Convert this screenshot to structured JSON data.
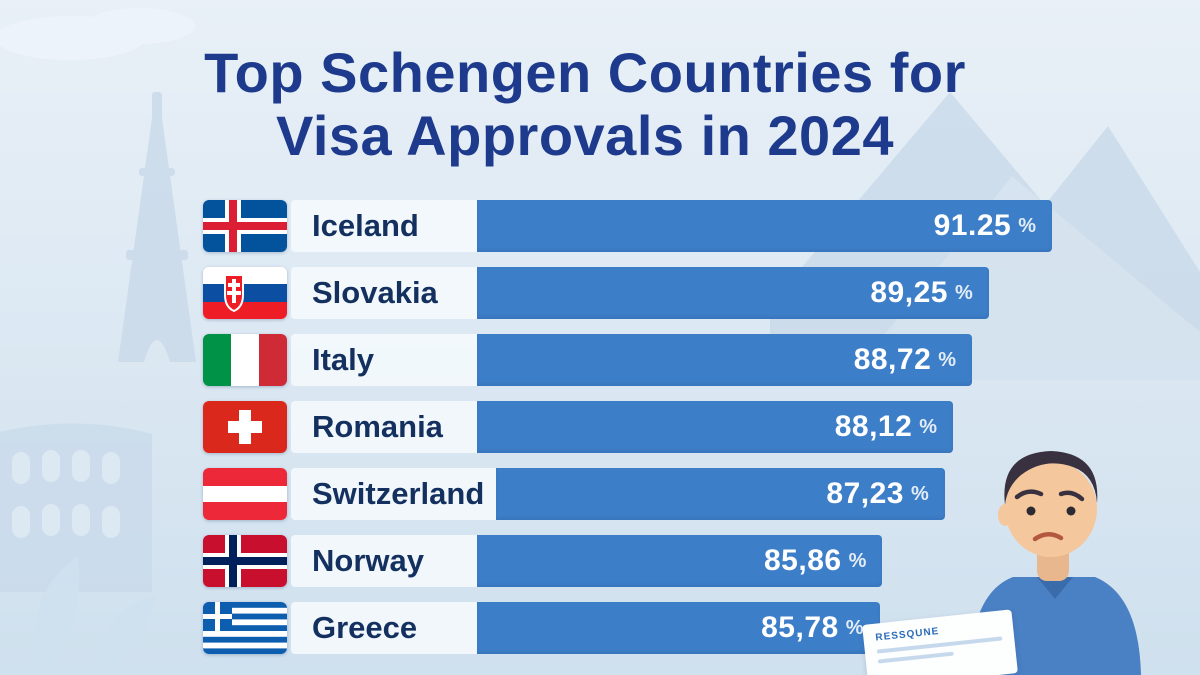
{
  "title": {
    "line1": "Top Schengen Countries for",
    "line2": "Visa Approvals in 2024"
  },
  "chart_data": {
    "type": "bar",
    "orientation": "horizontal",
    "title": "Top Schengen Countries for Visa Approvals in 2024",
    "categories": [
      "Iceland",
      "Slovakia",
      "Italy",
      "Romania",
      "Switzerland",
      "Norway",
      "Greece"
    ],
    "values": [
      91.25,
      89.25,
      88.72,
      88.12,
      87.23,
      85.86,
      85.78
    ],
    "value_labels": [
      "91.25",
      "89,25",
      "88,72",
      "88,12",
      "87,23",
      "85,86",
      "85,78"
    ],
    "unit": "%",
    "xlim": [
      0,
      100
    ],
    "bar_color": "#3d7ec8",
    "legend": "none",
    "grid": false
  },
  "decor": {
    "paper_text": "RESSQUNE"
  },
  "colors": {
    "background": "#dde9f3",
    "title_text": "#1d3a8c",
    "bar": "#3d7ec8",
    "label_background": "#f3f8fc",
    "country_text": "#13305f",
    "value_text": "#ffffff"
  }
}
